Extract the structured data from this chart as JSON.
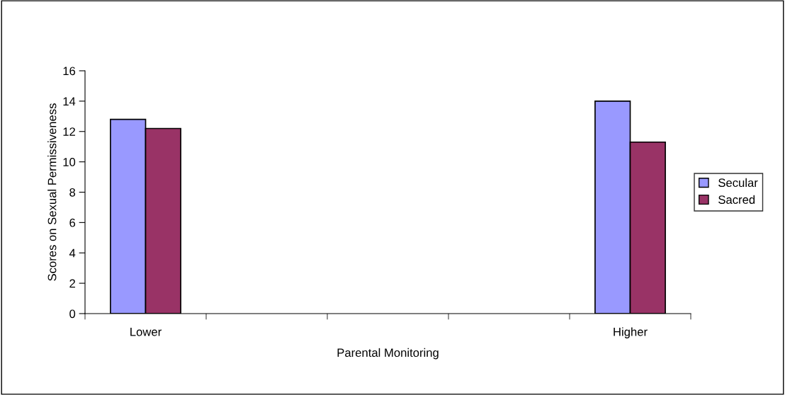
{
  "chart_data": {
    "type": "bar",
    "xlabel": "Parental Monitoring",
    "ylabel": "Scores on Sexual Permissiveness",
    "categories": [
      "Lower",
      null,
      null,
      null,
      "Higher"
    ],
    "series": [
      {
        "name": "Secular",
        "color": "#9999ff",
        "values": [
          12.8,
          null,
          null,
          null,
          14.0
        ]
      },
      {
        "name": "Sacred",
        "color": "#993366",
        "values": [
          12.2,
          null,
          null,
          null,
          11.3
        ]
      }
    ],
    "ylim": [
      0,
      16
    ],
    "yticks": [
      0,
      2,
      4,
      6,
      8,
      10,
      12,
      14,
      16
    ],
    "grid": false,
    "legend": "right"
  }
}
